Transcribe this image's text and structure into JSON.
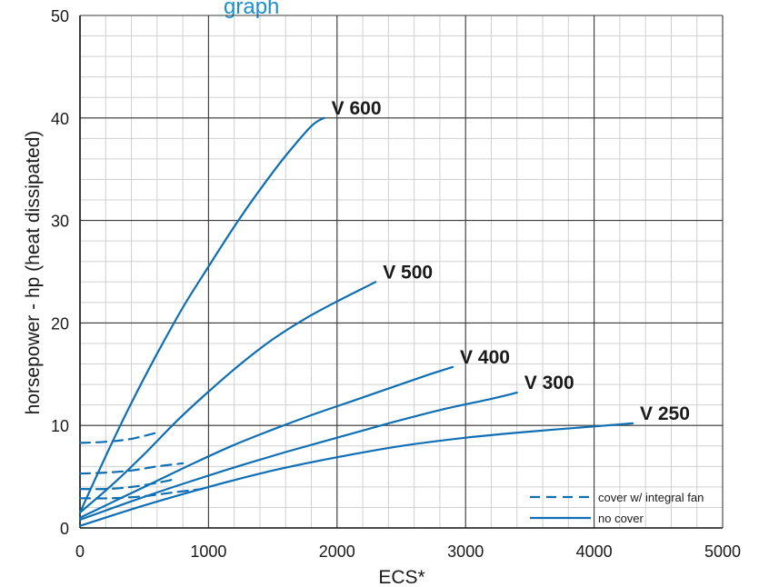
{
  "partial_title": "graph",
  "chart_data": {
    "type": "line",
    "xlabel": "ECS*",
    "ylabel": "horsepower - hp  (heat dissipated)",
    "xlim": [
      0,
      5000
    ],
    "ylim": [
      0,
      50
    ],
    "x_ticks": [
      "0",
      "1000",
      "2000",
      "3000",
      "4000",
      "5000"
    ],
    "y_ticks": [
      "0",
      "10",
      "20",
      "30",
      "40",
      "50"
    ],
    "x_tick_values": [
      0,
      1000,
      2000,
      3000,
      4000,
      5000
    ],
    "y_tick_values": [
      0,
      10,
      20,
      30,
      40,
      50
    ],
    "minor_x_step": 200,
    "minor_y_step": 2,
    "line_color": "#0f6fb4",
    "grid": true,
    "legend_position": "bottom-right",
    "legend": [
      {
        "label": "cover w/ integral fan",
        "style": "dashed"
      },
      {
        "label": "no cover",
        "style": "solid"
      }
    ],
    "series": [
      {
        "name": "V 600",
        "style": "solid",
        "x": [
          0,
          200,
          400,
          600,
          800,
          1000,
          1200,
          1400,
          1600,
          1800,
          1900
        ],
        "y": [
          1.5,
          7.0,
          12.2,
          17.0,
          21.5,
          25.5,
          29.4,
          33.0,
          36.3,
          39.2,
          40.0
        ]
      },
      {
        "name": "V 500",
        "style": "solid",
        "x": [
          0,
          250,
          500,
          750,
          1000,
          1250,
          1500,
          1750,
          2000,
          2300
        ],
        "y": [
          1.5,
          4.2,
          7.2,
          10.4,
          13.3,
          16.0,
          18.4,
          20.4,
          22.1,
          24.0
        ]
      },
      {
        "name": "V 400",
        "style": "solid",
        "x": [
          0,
          300,
          600,
          900,
          1200,
          1500,
          1800,
          2100,
          2400,
          2700,
          2900
        ],
        "y": [
          1.0,
          2.8,
          4.6,
          6.4,
          8.1,
          9.6,
          11.0,
          12.3,
          13.6,
          14.9,
          15.7
        ]
      },
      {
        "name": "V 300",
        "style": "solid",
        "x": [
          0,
          400,
          800,
          1200,
          1600,
          2000,
          2400,
          2800,
          3200,
          3400
        ],
        "y": [
          0.8,
          2.6,
          4.3,
          5.9,
          7.4,
          8.8,
          10.2,
          11.5,
          12.6,
          13.2
        ]
      },
      {
        "name": "V 250",
        "style": "solid",
        "x": [
          0,
          500,
          1000,
          1500,
          2000,
          2500,
          3000,
          3500,
          4000,
          4300
        ],
        "y": [
          0.2,
          2.2,
          4.0,
          5.6,
          6.9,
          8.0,
          8.8,
          9.4,
          9.9,
          10.2
        ]
      },
      {
        "style": "dashed",
        "x": [
          0,
          200,
          400,
          600
        ],
        "y": [
          8.3,
          8.4,
          8.7,
          9.3
        ]
      },
      {
        "style": "dashed",
        "x": [
          0,
          200,
          400,
          600,
          800
        ],
        "y": [
          5.3,
          5.4,
          5.6,
          6.0,
          6.3
        ]
      },
      {
        "style": "dashed",
        "x": [
          0,
          200,
          400,
          600,
          750
        ],
        "y": [
          3.8,
          3.8,
          4.0,
          4.4,
          4.8
        ]
      },
      {
        "style": "dashed",
        "x": [
          0,
          250,
          500,
          750,
          950
        ],
        "y": [
          2.9,
          2.9,
          3.1,
          3.5,
          3.8
        ]
      }
    ]
  }
}
